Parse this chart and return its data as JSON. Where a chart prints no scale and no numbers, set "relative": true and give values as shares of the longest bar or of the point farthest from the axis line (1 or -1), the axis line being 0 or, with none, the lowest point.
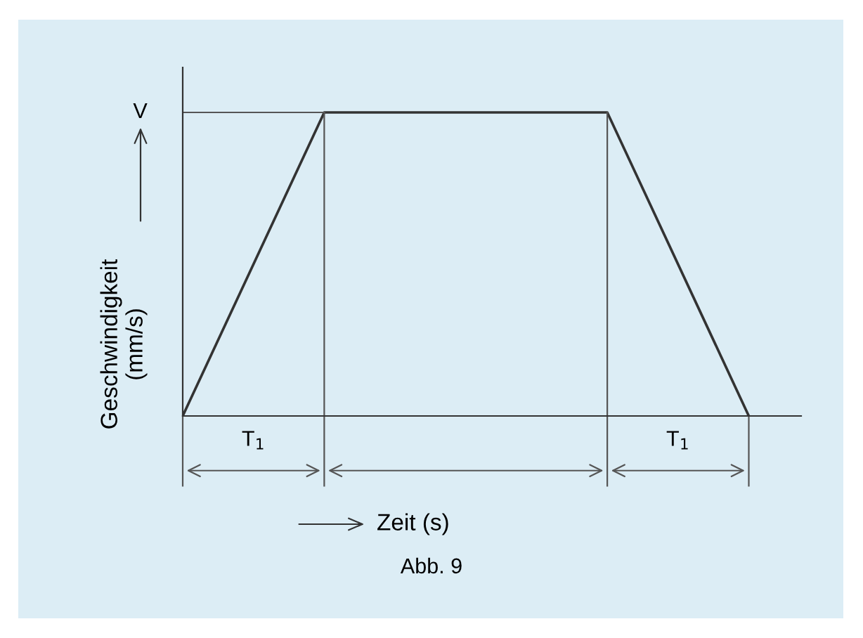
{
  "chart_data": {
    "type": "line",
    "relative": true,
    "xlabel": "Zeit (s)",
    "ylabel": "Geschwindigkeit\n(mm/s)",
    "categories": [
      null,
      null,
      null,
      null,
      null
    ],
    "series": [
      {
        "color": "#333333",
        "values": [
          0,
          1,
          1,
          1,
          0
        ]
      }
    ],
    "annotations": [
      "T$_{1}$",
      "T$_{1}$",
      "V",
      "Abb. 9"
    ],
    "grid": false,
    "marker": "none",
    "line_style": "solid"
  }
}
